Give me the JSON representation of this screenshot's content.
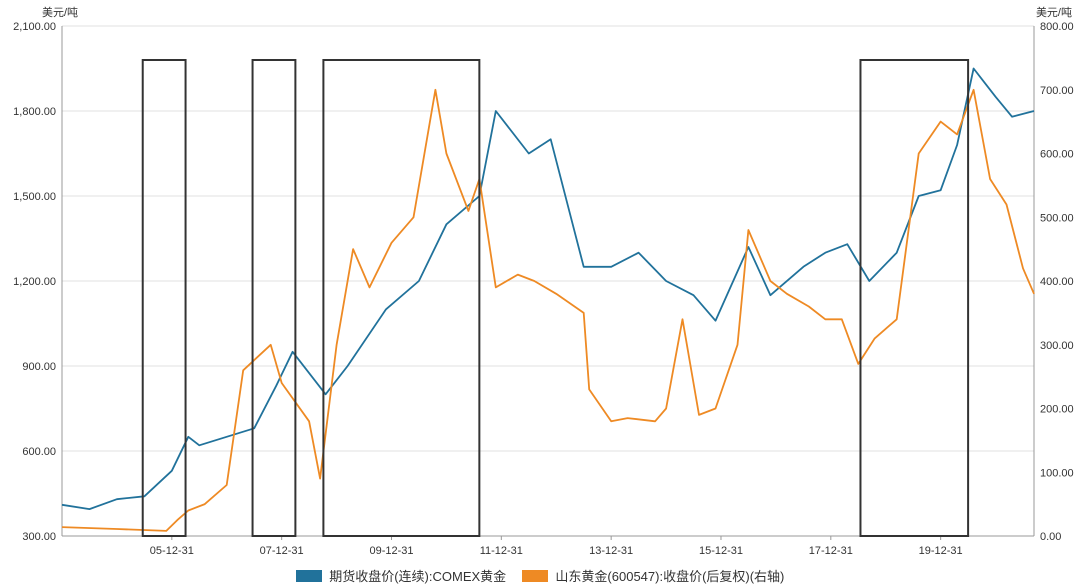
{
  "chart_data": {
    "type": "line",
    "left_unit": "美元/吨",
    "right_unit": "美元/吨",
    "x_tick_labels": [
      "05-12-31",
      "07-12-31",
      "09-12-31",
      "11-12-31",
      "13-12-31",
      "15-12-31",
      "17-12-31",
      "19-12-31"
    ],
    "x_range": [
      2004.0,
      2021.7
    ],
    "left_axis": {
      "ylim": [
        300,
        2100
      ],
      "ticks": [
        "300.00",
        "600.00",
        "900.00",
        "1,200.00",
        "1,500.00",
        "1,800.00",
        "2,100.00"
      ],
      "tick_values": [
        300,
        600,
        900,
        1200,
        1500,
        1800,
        2100
      ]
    },
    "right_axis": {
      "ylim": [
        0,
        800
      ],
      "ticks": [
        "0.00",
        "100.00",
        "200.00",
        "300.00",
        "400.00",
        "500.00",
        "600.00",
        "700.00",
        "800.00"
      ],
      "tick_values": [
        0,
        100,
        200,
        300,
        400,
        500,
        600,
        700,
        800
      ]
    },
    "grid": true,
    "legend_position": "bottom",
    "series": [
      {
        "name": "期货收盘价(连续):COMEX黄金",
        "axis": "left",
        "color": "#21729b",
        "x": [
          2004.0,
          2004.5,
          2005.0,
          2005.5,
          2006.0,
          2006.3,
          2006.5,
          2007.0,
          2007.5,
          2007.9,
          2008.2,
          2008.8,
          2009.2,
          2009.9,
          2010.5,
          2011.0,
          2011.6,
          2011.9,
          2012.5,
          2012.9,
          2013.3,
          2013.5,
          2014.0,
          2014.5,
          2015.0,
          2015.5,
          2015.9,
          2016.5,
          2016.9,
          2017.5,
          2017.9,
          2018.3,
          2018.7,
          2019.2,
          2019.6,
          2020.0,
          2020.3,
          2020.6,
          2020.8,
          2021.0,
          2021.3,
          2021.7
        ],
        "y": [
          410,
          395,
          430,
          440,
          530,
          650,
          620,
          650,
          680,
          830,
          950,
          800,
          900,
          1100,
          1200,
          1400,
          1500,
          1800,
          1650,
          1700,
          1400,
          1250,
          1250,
          1300,
          1200,
          1150,
          1060,
          1320,
          1150,
          1250,
          1300,
          1330,
          1200,
          1300,
          1500,
          1520,
          1680,
          1950,
          1900,
          1850,
          1780,
          1800
        ]
      },
      {
        "name": "山东黄金(600547):收盘价(后复权)(右轴)",
        "axis": "right",
        "color": "#ee8a24",
        "x": [
          2004.0,
          2005.0,
          2005.9,
          2006.1,
          2006.3,
          2006.6,
          2007.0,
          2007.3,
          2007.8,
          2008.0,
          2008.5,
          2008.7,
          2009.0,
          2009.3,
          2009.6,
          2010.0,
          2010.4,
          2010.8,
          2011.0,
          2011.4,
          2011.6,
          2011.9,
          2012.3,
          2012.6,
          2013.0,
          2013.5,
          2013.6,
          2014.0,
          2014.3,
          2014.8,
          2015.0,
          2015.3,
          2015.6,
          2015.9,
          2016.3,
          2016.5,
          2016.9,
          2017.2,
          2017.6,
          2017.9,
          2018.2,
          2018.5,
          2018.8,
          2019.2,
          2019.6,
          2020.0,
          2020.3,
          2020.6,
          2020.9,
          2021.2,
          2021.5,
          2021.7
        ],
        "y": [
          14,
          11,
          8,
          25,
          40,
          50,
          80,
          260,
          300,
          240,
          180,
          90,
          300,
          450,
          390,
          460,
          500,
          700,
          600,
          510,
          560,
          390,
          410,
          400,
          380,
          350,
          230,
          180,
          185,
          180,
          200,
          340,
          190,
          200,
          300,
          480,
          400,
          380,
          360,
          340,
          340,
          270,
          310,
          340,
          600,
          650,
          630,
          700,
          560,
          520,
          420,
          380
        ]
      }
    ],
    "highlight_boxes": [
      {
        "x_start": 2005.47,
        "x_end": 2006.25
      },
      {
        "x_start": 2007.47,
        "x_end": 2008.25
      },
      {
        "x_start": 2008.76,
        "x_end": 2011.6
      },
      {
        "x_start": 2018.54,
        "x_end": 2020.5
      }
    ]
  }
}
